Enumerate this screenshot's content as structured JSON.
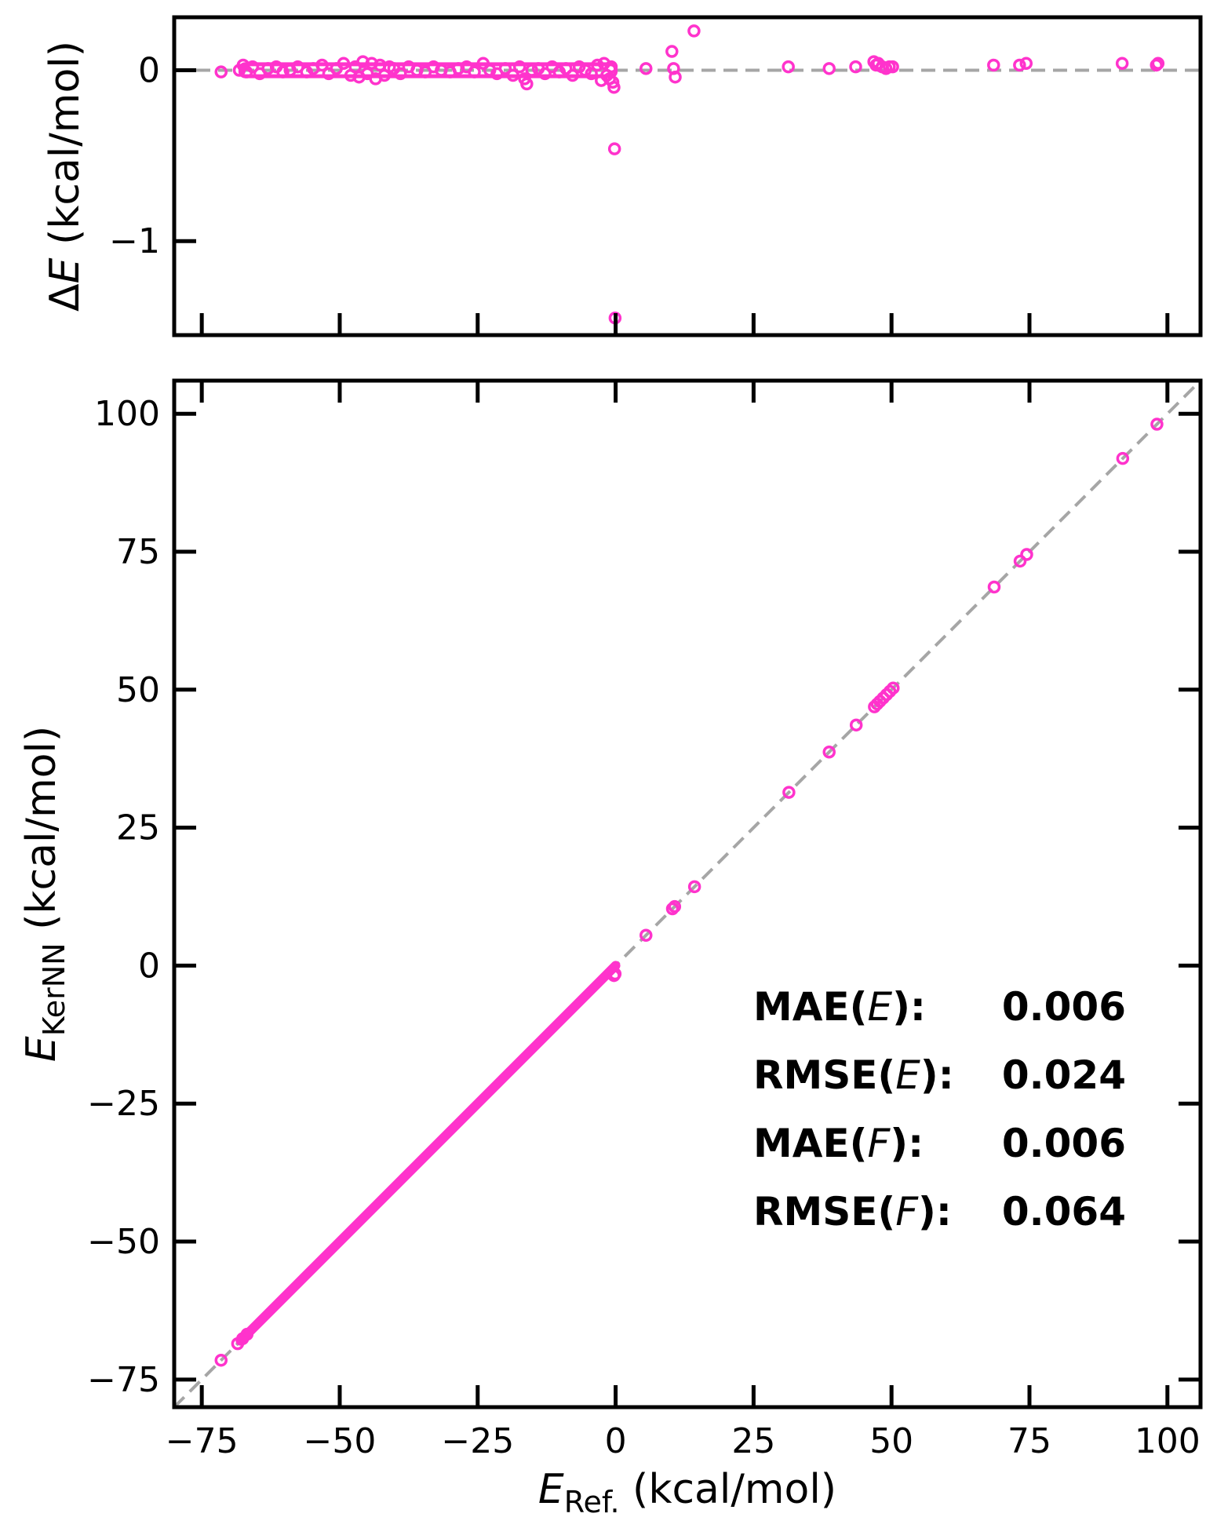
{
  "chart_data": [
    {
      "panel": "residuals",
      "type": "scatter",
      "ylabel_prefix": "Δ",
      "ylabel_var": "E",
      "ylabel_unit": " (kcal/mol)",
      "xlim": [
        -80,
        106
      ],
      "ylim": [
        -1.55,
        0.31
      ],
      "xticks": [
        -75,
        -50,
        -25,
        0,
        25,
        50,
        75,
        100
      ],
      "yticks": [
        0,
        -1
      ],
      "ytick_labels": [
        "0",
        "−1"
      ],
      "zero_line": true,
      "marker_color": "#ff33cc",
      "reference_line_color": "#a6a6a6",
      "series": [
        {
          "points": [
            [
              -71.5,
              -0.01
            ],
            [
              -68.2,
              0.0
            ],
            [
              -67.5,
              0.03
            ],
            [
              -66.9,
              -0.01
            ],
            [
              -65.8,
              0.02
            ],
            [
              -64.5,
              -0.02
            ],
            [
              -63.0,
              0.01
            ],
            [
              -61.5,
              0.02
            ],
            [
              -60.3,
              -0.01
            ],
            [
              -59.0,
              0.0
            ],
            [
              -57.6,
              0.02
            ],
            [
              -56.0,
              -0.01
            ],
            [
              -54.8,
              0.01
            ],
            [
              -53.2,
              0.03
            ],
            [
              -52.0,
              -0.02
            ],
            [
              -50.6,
              0.01
            ],
            [
              -49.3,
              0.04
            ],
            [
              -48.0,
              -0.03
            ],
            [
              -47.2,
              0.02
            ],
            [
              -46.5,
              -0.04
            ],
            [
              -45.8,
              0.05
            ],
            [
              -45.0,
              -0.02
            ],
            [
              -44.2,
              0.04
            ],
            [
              -43.5,
              -0.05
            ],
            [
              -42.7,
              0.03
            ],
            [
              -41.9,
              -0.03
            ],
            [
              -41.0,
              0.02
            ],
            [
              -40.2,
              0.01
            ],
            [
              -39.0,
              -0.02
            ],
            [
              -37.5,
              0.02
            ],
            [
              -36.0,
              0.0
            ],
            [
              -34.5,
              -0.01
            ],
            [
              -33.0,
              0.02
            ],
            [
              -31.6,
              0.0
            ],
            [
              -30.0,
              -0.01
            ],
            [
              -28.5,
              0.01
            ],
            [
              -27.0,
              0.02
            ],
            [
              -25.6,
              -0.01
            ],
            [
              -24.0,
              0.04
            ],
            [
              -22.8,
              0.0
            ],
            [
              -21.5,
              -0.02
            ],
            [
              -20.0,
              0.01
            ],
            [
              -18.6,
              -0.03
            ],
            [
              -17.4,
              0.02
            ],
            [
              -16.5,
              -0.05
            ],
            [
              -16.1,
              -0.08
            ],
            [
              -15.2,
              0.0
            ],
            [
              -14.0,
              0.01
            ],
            [
              -12.8,
              -0.02
            ],
            [
              -11.5,
              0.02
            ],
            [
              -10.2,
              -0.01
            ],
            [
              -9.0,
              0.01
            ],
            [
              -7.8,
              -0.03
            ],
            [
              -6.6,
              0.02
            ],
            [
              -5.5,
              0.0
            ],
            [
              -4.4,
              -0.02
            ],
            [
              -3.3,
              0.03
            ],
            [
              -2.6,
              -0.06
            ],
            [
              -2.1,
              0.04
            ],
            [
              -1.6,
              -0.03
            ],
            [
              -1.1,
              -0.05
            ],
            [
              -0.8,
              0.02
            ],
            [
              -0.5,
              -0.07
            ],
            [
              -0.3,
              -0.1
            ],
            [
              -0.2,
              -0.46
            ],
            [
              -0.1,
              -1.45
            ],
            [
              5.5,
              0.01
            ],
            [
              10.2,
              0.11
            ],
            [
              10.5,
              0.01
            ],
            [
              10.8,
              -0.04
            ],
            [
              14.2,
              0.23
            ],
            [
              31.3,
              0.02
            ],
            [
              38.7,
              0.01
            ],
            [
              43.5,
              0.02
            ],
            [
              46.8,
              0.05
            ],
            [
              47.2,
              0.03
            ],
            [
              47.6,
              0.04
            ],
            [
              48.3,
              0.02
            ],
            [
              49.0,
              0.01
            ],
            [
              49.6,
              0.02
            ],
            [
              50.2,
              0.02
            ],
            [
              68.5,
              0.03
            ],
            [
              73.2,
              0.03
            ],
            [
              74.4,
              0.04
            ],
            [
              91.8,
              0.04
            ],
            [
              98.0,
              0.03
            ],
            [
              98.3,
              0.04
            ]
          ]
        }
      ]
    },
    {
      "panel": "parity",
      "type": "scatter",
      "xlabel_var": "E",
      "xlabel_sub": "Ref.",
      "xlabel_unit": "  (kcal/mol)",
      "ylabel_var": "E",
      "ylabel_sub": "KerNN",
      "ylabel_unit": "  (kcal/mol)",
      "xlim": [
        -80,
        106
      ],
      "ylim": [
        -80,
        106
      ],
      "xticks": [
        -75,
        -50,
        -25,
        0,
        25,
        50,
        75,
        100
      ],
      "xtick_labels": [
        "−75",
        "−50",
        "−25",
        "0",
        "25",
        "50",
        "75",
        "100"
      ],
      "yticks": [
        -75,
        -50,
        -25,
        0,
        25,
        50,
        75,
        100
      ],
      "ytick_labels": [
        "−75",
        "−50",
        "−25",
        "0",
        "25",
        "50",
        "75",
        "100"
      ],
      "diagonal_line": true,
      "marker_color": "#ff33cc",
      "reference_line_color": "#a6a6a6",
      "dense_segment_x": [
        -68.0,
        0.0
      ],
      "series": [
        {
          "points": [
            [
              -71.5,
              -71.5
            ],
            [
              -68.5,
              -68.5
            ],
            [
              -67.6,
              -67.6
            ],
            [
              -66.8,
              -66.8
            ],
            [
              -0.3,
              -1.8
            ],
            [
              -0.1,
              -1.5
            ],
            [
              5.5,
              5.5
            ],
            [
              10.3,
              10.3
            ],
            [
              10.7,
              10.7
            ],
            [
              14.3,
              14.3
            ],
            [
              31.4,
              31.4
            ],
            [
              38.7,
              38.7
            ],
            [
              43.6,
              43.6
            ],
            [
              46.9,
              46.9
            ],
            [
              47.4,
              47.4
            ],
            [
              47.9,
              47.9
            ],
            [
              48.5,
              48.5
            ],
            [
              49.1,
              49.1
            ],
            [
              49.7,
              49.7
            ],
            [
              50.3,
              50.3
            ],
            [
              68.6,
              68.6
            ],
            [
              73.3,
              73.3
            ],
            [
              74.5,
              74.5
            ],
            [
              91.9,
              91.9
            ],
            [
              98.1,
              98.1
            ]
          ]
        }
      ],
      "annotations": [
        {
          "label": "MAE(",
          "var": "E",
          "close": "):",
          "value": "0.006"
        },
        {
          "label": "RMSE(",
          "var": "E",
          "close": "):",
          "value": "0.024"
        },
        {
          "label": "MAE(",
          "var": "F",
          "close": "):",
          "value": "0.006"
        },
        {
          "label": "RMSE(",
          "var": "F",
          "close": "):",
          "value": "0.064"
        }
      ]
    }
  ]
}
